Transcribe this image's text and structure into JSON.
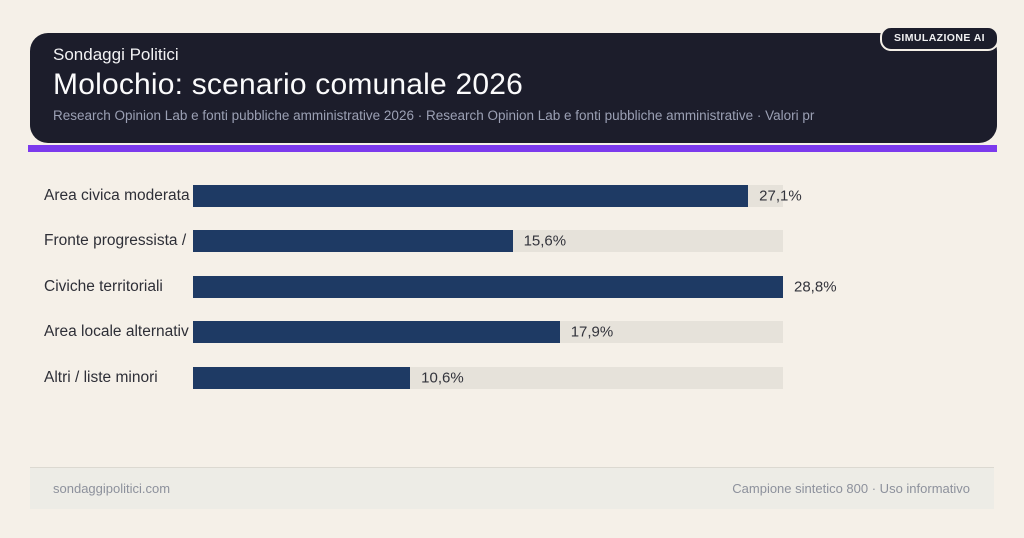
{
  "page": {
    "background": "#f5f0e8"
  },
  "header": {
    "badge": "SIMULAZIONE AI",
    "eyebrow": "Sondaggi Politici",
    "title": "Molochio: scenario comunale 2026",
    "subtitle": "Research Opinion Lab e fonti pubbliche amministrative 2026 · Research Opinion Lab e fonti pubbliche amministrative · Valori pr",
    "background": "#1c1d2b",
    "accent_color": "#7c3aed"
  },
  "chart_data": {
    "type": "bar",
    "orientation": "horizontal",
    "title": "Molochio: scenario comunale 2026",
    "categories": [
      "Area civica moderata",
      "Fronte progressista /",
      "Civiche territoriali",
      "Area locale alternativ",
      "Altri / liste minori"
    ],
    "values": [
      27.1,
      15.6,
      28.8,
      17.9,
      10.6
    ],
    "value_labels": [
      "27,1%",
      "15,6%",
      "28,8%",
      "17,9%",
      "10,6%"
    ],
    "xlim": [
      0,
      28.8
    ],
    "bar_color": "#1e3a64",
    "track_color": "#e6e2da",
    "grid": false,
    "legend": false
  },
  "footer": {
    "left": "sondaggipolitici.com",
    "right": "Campione sintetico 800 · Uso informativo"
  }
}
